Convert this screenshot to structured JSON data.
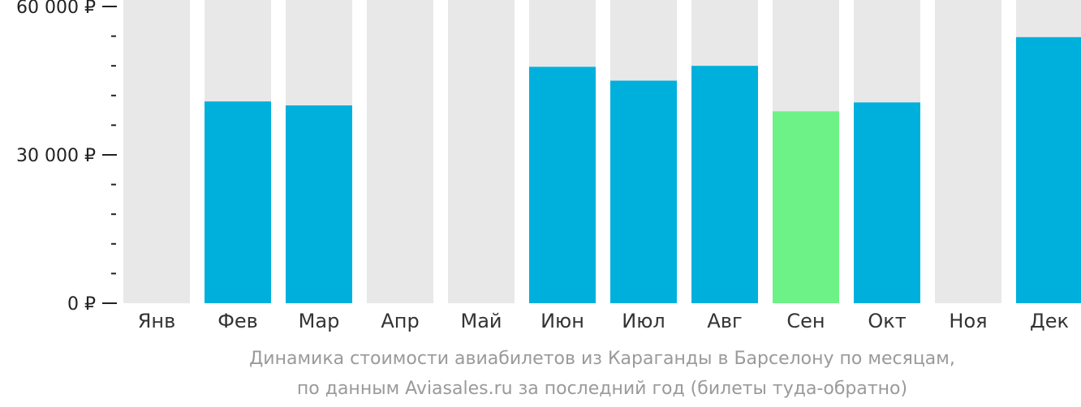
{
  "chart_data": {
    "type": "bar",
    "categories": [
      "Янв",
      "Фев",
      "Мар",
      "Апр",
      "Май",
      "Июн",
      "Июл",
      "Авг",
      "Сен",
      "Окт",
      "Ноя",
      "Дек"
    ],
    "values": [
      null,
      40800,
      40000,
      null,
      null,
      47800,
      45000,
      48000,
      38800,
      40600,
      null,
      53800
    ],
    "ylim": [
      0,
      60000
    ],
    "yticks": [
      {
        "value": 0,
        "label": "0 ₽"
      },
      {
        "value": 30000,
        "label": "30 000 ₽"
      },
      {
        "value": 60000,
        "label": "60 000 ₽"
      }
    ],
    "minor_ticks_per_interval": 5,
    "highlight_category": "Сен",
    "colors": {
      "bar": "#00b0dc",
      "highlight": "#6df287",
      "background_column": "#e8e8e8",
      "axis": "#222222"
    },
    "title": "",
    "xlabel": "",
    "ylabel": ""
  },
  "caption": {
    "line1": "Динамика стоимости авиабилетов из Караганды в Барселону по месяцам,",
    "line2": "по данным Aviasales.ru за последний год (билеты туда-обратно)"
  }
}
